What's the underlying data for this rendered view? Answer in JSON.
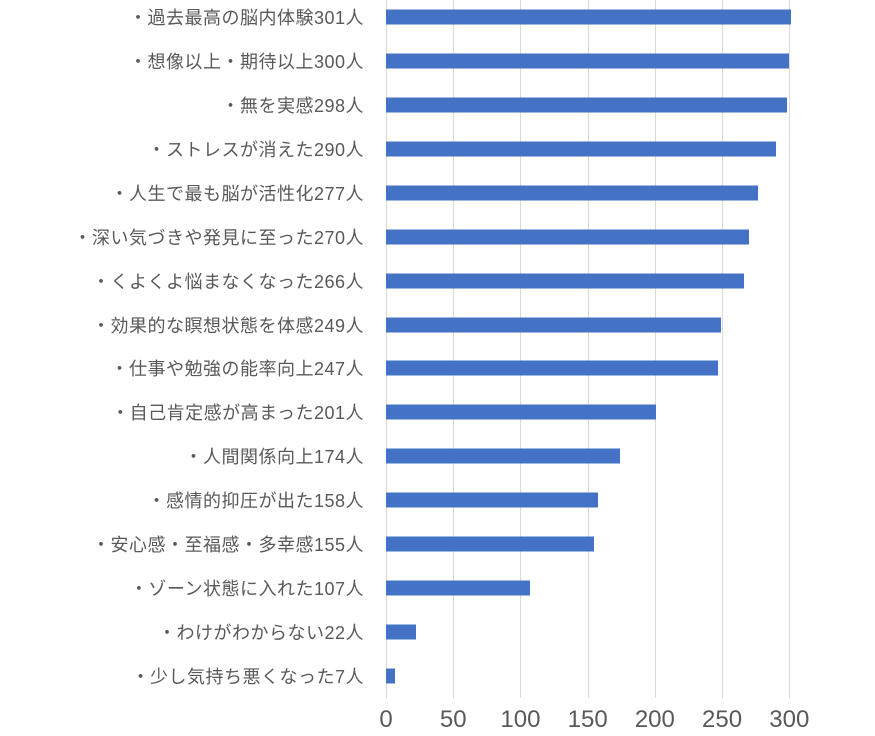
{
  "chart_data": {
    "type": "bar",
    "orientation": "horizontal",
    "title": "",
    "xlabel": "",
    "ylabel": "",
    "categories": [
      "・過去最高の脳内体験301人",
      "・想像以上・期待以上300人",
      "・無を実感298人",
      "・ストレスが消えた290人",
      "・人生で最も脳が活性化277人",
      "・深い気づきや発見に至った270人",
      "・くよくよ悩まなくなった266人",
      "・効果的な瞑想状態を体感249人",
      "・仕事や勉強の能率向上247人",
      "・自己肯定感が高まった201人",
      "・人間関係向上174人",
      "・感情的抑圧が出た158人",
      "・安心感・至福感・多幸感155人",
      "・ゾーン状態に入れた107人",
      "・わけがわからない22人",
      "・少し気持ち悪くなった7人"
    ],
    "values": [
      301,
      300,
      298,
      290,
      277,
      270,
      266,
      249,
      247,
      201,
      174,
      158,
      155,
      107,
      22,
      7
    ],
    "xlim": [
      0,
      334
    ],
    "xticks": [
      0,
      50,
      100,
      150,
      200,
      250,
      300
    ],
    "grid": true,
    "legend": false,
    "colors": {
      "bar": "#4472C4",
      "gridline": "#D9D9D9",
      "text": "#595959",
      "background": "#FFFFFF"
    }
  }
}
